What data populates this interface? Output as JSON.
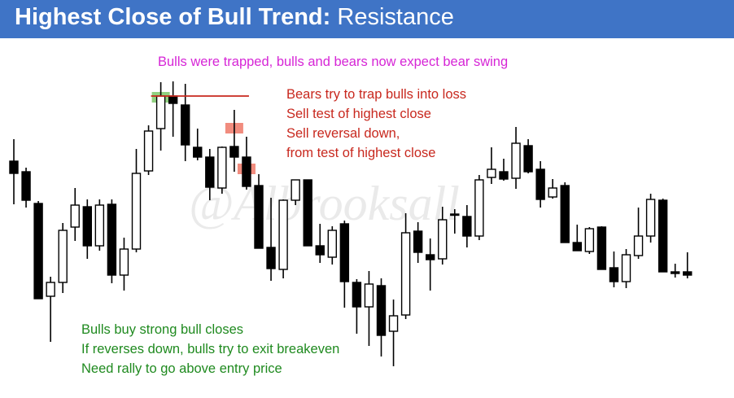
{
  "header": {
    "title_bold": "Highest Close of Bull Trend:",
    "title_rest": " Resistance"
  },
  "watermark": "@Albrooksall",
  "annotations": {
    "top": "Bulls were trapped, bulls and bears now expect bear swing",
    "red": [
      "Bears try to trap bulls into loss",
      "Sell test of highest close",
      "Sell reversal down,",
      "from test of highest close"
    ],
    "green": [
      "Bulls buy strong bull closes",
      "If reverses down, bulls try to exit breakeven",
      "Need rally to go above entry price"
    ]
  },
  "colors": {
    "title_bar": "#3f74c6",
    "bull_body": "#ffffff",
    "bear_body": "#000000",
    "highest_close_line": "#c8281e",
    "green_zone": "#7dc86a",
    "red_zone": "#f08070",
    "top_note": "#d626d6",
    "red_note": "#c8281e",
    "green_note": "#1f8a1f"
  },
  "chart_data": {
    "type": "candlestick",
    "bars": [
      {
        "o": 198,
        "h": 171,
        "l": 251,
        "c": 213
      },
      {
        "o": 211,
        "h": 206,
        "l": 255,
        "c": 246
      },
      {
        "o": 250,
        "h": 247,
        "l": 367,
        "c": 367
      },
      {
        "o": 364,
        "h": 340,
        "l": 420,
        "c": 347
      },
      {
        "o": 347,
        "h": 274,
        "l": 360,
        "c": 283
      },
      {
        "o": 279,
        "h": 231,
        "l": 296,
        "c": 252
      },
      {
        "o": 254,
        "h": 245,
        "l": 318,
        "c": 302
      },
      {
        "o": 302,
        "h": 245,
        "l": 308,
        "c": 252
      },
      {
        "o": 251,
        "h": 245,
        "l": 348,
        "c": 338
      },
      {
        "o": 338,
        "h": 292,
        "l": 357,
        "c": 306
      },
      {
        "o": 306,
        "h": 183,
        "l": 310,
        "c": 213
      },
      {
        "o": 210,
        "h": 154,
        "l": 215,
        "c": 161
      },
      {
        "o": 158,
        "h": 101,
        "l": 185,
        "c": 118
      },
      {
        "o": 118,
        "h": 100,
        "l": 168,
        "c": 127
      },
      {
        "o": 129,
        "h": 103,
        "l": 198,
        "c": 178
      },
      {
        "o": 181,
        "h": 158,
        "l": 197,
        "c": 193
      },
      {
        "o": 193,
        "h": 183,
        "l": 246,
        "c": 230
      },
      {
        "o": 231,
        "h": 180,
        "l": 238,
        "c": 181
      },
      {
        "o": 180,
        "h": 135,
        "l": 211,
        "c": 193
      },
      {
        "o": 193,
        "h": 168,
        "l": 233,
        "c": 229
      },
      {
        "o": 228,
        "h": 214,
        "l": 292,
        "c": 305
      },
      {
        "o": 304,
        "h": 243,
        "l": 345,
        "c": 330
      },
      {
        "o": 331,
        "h": 245,
        "l": 342,
        "c": 246
      },
      {
        "o": 246,
        "h": 227,
        "l": 252,
        "c": 221
      },
      {
        "o": 221,
        "h": 221,
        "l": 302,
        "c": 302
      },
      {
        "o": 302,
        "h": 275,
        "l": 323,
        "c": 313
      },
      {
        "o": 316,
        "h": 278,
        "l": 325,
        "c": 283
      },
      {
        "o": 275,
        "h": 271,
        "l": 378,
        "c": 346
      },
      {
        "o": 347,
        "h": 343,
        "l": 410,
        "c": 377
      },
      {
        "o": 377,
        "h": 333,
        "l": 425,
        "c": 349
      },
      {
        "o": 351,
        "h": 342,
        "l": 438,
        "c": 412
      },
      {
        "o": 407,
        "h": 368,
        "l": 450,
        "c": 388
      },
      {
        "o": 387,
        "h": 262,
        "l": 392,
        "c": 286
      },
      {
        "o": 284,
        "h": 273,
        "l": 323,
        "c": 310
      },
      {
        "o": 313,
        "h": 293,
        "l": 357,
        "c": 319
      },
      {
        "o": 318,
        "h": 254,
        "l": 325,
        "c": 270
      },
      {
        "o": 263,
        "h": 257,
        "l": 287,
        "c": 263
      },
      {
        "o": 266,
        "h": 252,
        "l": 304,
        "c": 290
      },
      {
        "o": 290,
        "h": 215,
        "l": 295,
        "c": 221
      },
      {
        "o": 218,
        "h": 181,
        "l": 226,
        "c": 208
      },
      {
        "o": 211,
        "h": 195,
        "l": 222,
        "c": 220
      },
      {
        "o": 219,
        "h": 156,
        "l": 232,
        "c": 176
      },
      {
        "o": 179,
        "h": 171,
        "l": 213,
        "c": 211
      },
      {
        "o": 208,
        "h": 198,
        "l": 255,
        "c": 245
      },
      {
        "o": 242,
        "h": 220,
        "l": 244,
        "c": 231
      },
      {
        "o": 228,
        "h": 224,
        "l": 298,
        "c": 298
      },
      {
        "o": 298,
        "h": 276,
        "l": 308,
        "c": 308
      },
      {
        "o": 309,
        "h": 279,
        "l": 312,
        "c": 281
      },
      {
        "o": 279,
        "h": 278,
        "l": 331,
        "c": 331
      },
      {
        "o": 329,
        "h": 309,
        "l": 353,
        "c": 346
      },
      {
        "o": 346,
        "h": 306,
        "l": 354,
        "c": 313
      },
      {
        "o": 314,
        "h": 255,
        "l": 318,
        "c": 290
      },
      {
        "o": 290,
        "h": 238,
        "l": 298,
        "c": 245
      },
      {
        "o": 246,
        "h": 244,
        "l": 333,
        "c": 334
      },
      {
        "o": 334,
        "h": 324,
        "l": 341,
        "c": 336
      },
      {
        "o": 334,
        "h": 310,
        "l": 342,
        "c": 338
      }
    ],
    "highest_close_line": {
      "from_bar": 12,
      "to_bar": 19,
      "value": 118
    },
    "zones": [
      {
        "kind": "entry-green",
        "bar": 12,
        "top": 113,
        "bottom": 126
      },
      {
        "kind": "sell-test-red",
        "bar": 18,
        "top": 151,
        "bottom": 164
      },
      {
        "kind": "sell-reversal-red",
        "bar": 19,
        "top": 201,
        "bottom": 214
      }
    ],
    "y_axis": "inverted price (screen units)",
    "grid": false,
    "legend": "none"
  }
}
